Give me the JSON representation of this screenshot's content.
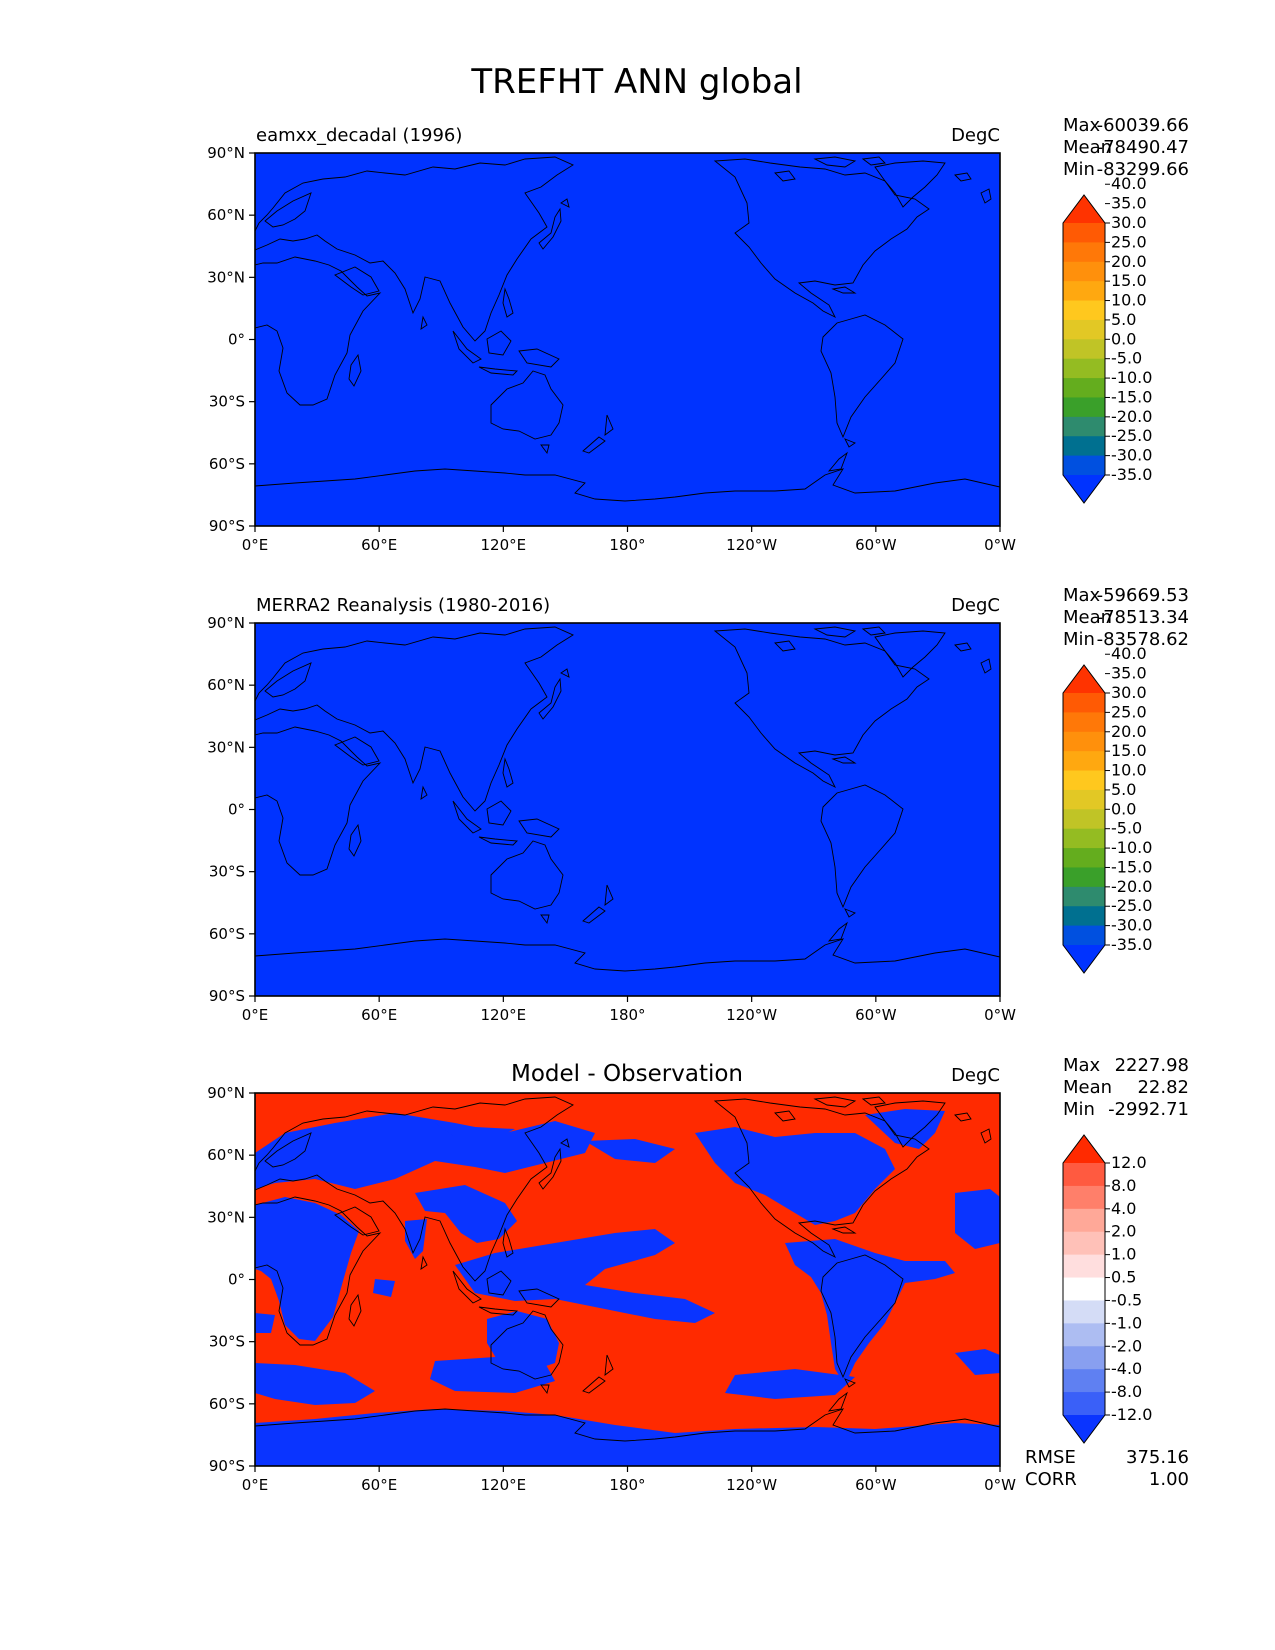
{
  "title": "TREFHT ANN global",
  "lon_ticks": [
    "0°E",
    "60°E",
    "120°E",
    "180°",
    "120°W",
    "60°W",
    "0°W"
  ],
  "lat_ticks": [
    "90°N",
    "60°N",
    "30°N",
    "0°",
    "30°S",
    "60°S",
    "90°S"
  ],
  "panels": [
    {
      "id": "test",
      "left_title": "eamxx_decadal (1996)",
      "center_title": "",
      "units": "DegC",
      "stats": [
        {
          "label": "Max",
          "value": "-60039.66"
        },
        {
          "label": "Mean",
          "value": "-78490.47"
        },
        {
          "label": "Min",
          "value": "-83299.66"
        }
      ],
      "fill_color": "#0033ff",
      "colorbar": {
        "colors": [
          "#0033ff",
          "#0050e0",
          "#007090",
          "#2e8b6e",
          "#3aa02a",
          "#64ad1e",
          "#94bc22",
          "#c0c426",
          "#e2c825",
          "#ffc81e",
          "#ffa810",
          "#ff900c",
          "#ff7808",
          "#ff5a04",
          "#ff3300"
        ],
        "labels": [
          "-35.0",
          "-30.0",
          "-25.0",
          "-20.0",
          "-15.0",
          "-10.0",
          "-5.0",
          "0.0",
          "5.0",
          "10.0",
          "15.0",
          "20.0",
          "25.0",
          "30.0",
          "35.0",
          "40.0"
        ]
      }
    },
    {
      "id": "reference",
      "left_title": "MERRA2 Reanalysis (1980-2016)",
      "center_title": "",
      "units": "DegC",
      "stats": [
        {
          "label": "Max",
          "value": "-59669.53"
        },
        {
          "label": "Mean",
          "value": "-78513.34"
        },
        {
          "label": "Min",
          "value": "-83578.62"
        }
      ],
      "fill_color": "#0033ff",
      "colorbar": {
        "colors": [
          "#0033ff",
          "#0050e0",
          "#007090",
          "#2e8b6e",
          "#3aa02a",
          "#64ad1e",
          "#94bc22",
          "#c0c426",
          "#e2c825",
          "#ffc81e",
          "#ffa810",
          "#ff900c",
          "#ff7808",
          "#ff5a04",
          "#ff3300"
        ],
        "labels": [
          "-35.0",
          "-30.0",
          "-25.0",
          "-20.0",
          "-15.0",
          "-10.0",
          "-5.0",
          "0.0",
          "5.0",
          "10.0",
          "15.0",
          "20.0",
          "25.0",
          "30.0",
          "35.0",
          "40.0"
        ]
      }
    },
    {
      "id": "difference",
      "left_title": "",
      "center_title": "Model - Observation",
      "units": "DegC",
      "stats": [
        {
          "label": "Max",
          "value": "2227.98"
        },
        {
          "label": "Mean",
          "value": "22.82"
        },
        {
          "label": "Min",
          "value": "-2992.71"
        }
      ],
      "fill_color": "#ff2a00",
      "colorbar": {
        "colors": [
          "#0a34ff",
          "#3a60f8",
          "#5f80f2",
          "#889ff0",
          "#adbdf2",
          "#d4dcf6",
          "#ffffff",
          "#ffdede",
          "#ffc1b8",
          "#ffa898",
          "#ff7f6a",
          "#ff5a40",
          "#ff2a00"
        ],
        "labels": [
          "-12.0",
          "-8.0",
          "-4.0",
          "-2.0",
          "-1.0",
          "-0.5",
          "0.5",
          "1.0",
          "2.0",
          "4.0",
          "8.0",
          "12.0"
        ]
      },
      "footer_stats": [
        {
          "label": "RMSE",
          "value": "375.16"
        },
        {
          "label": "CORR",
          "value": "1.00"
        }
      ]
    }
  ]
}
